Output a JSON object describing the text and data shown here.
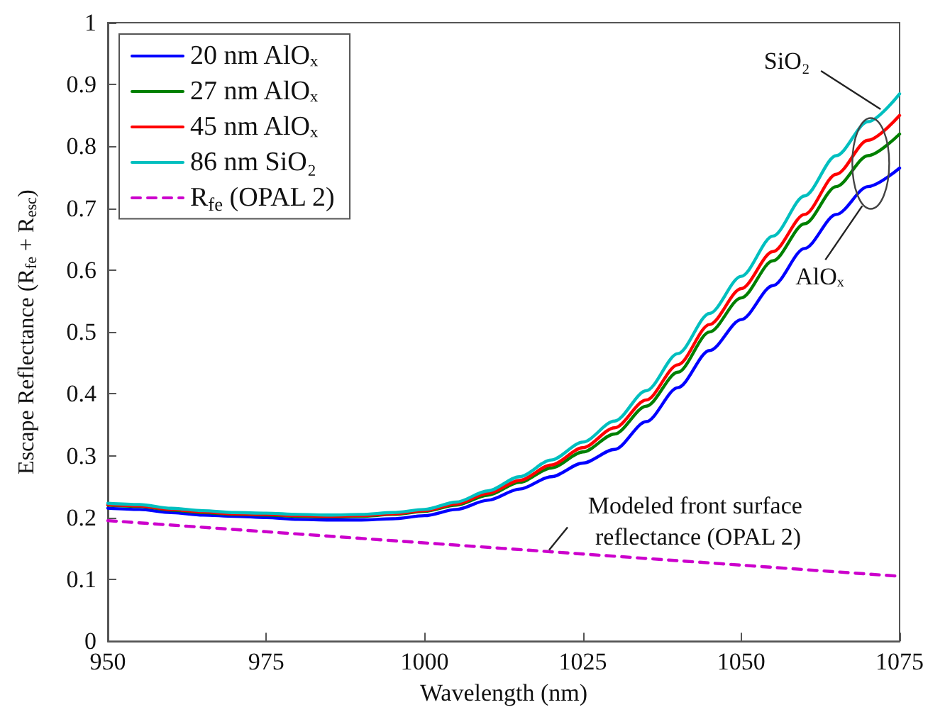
{
  "chart_data": {
    "type": "line",
    "xlabel": "Wavelength (nm)",
    "ylabel": "Escape Reflectance (R$_{fe}$ + R$_{esc}$)",
    "x": [
      950,
      955,
      960,
      965,
      970,
      975,
      980,
      985,
      990,
      995,
      1000,
      1005,
      1010,
      1015,
      1020,
      1025,
      1030,
      1035,
      1040,
      1045,
      1050,
      1055,
      1060,
      1065,
      1070,
      1075
    ],
    "series": [
      {
        "name": "20 nm AlOₓ",
        "color": "#0000ff",
        "line_style": "solid",
        "values": [
          0.215,
          0.213,
          0.208,
          0.204,
          0.202,
          0.2,
          0.197,
          0.196,
          0.196,
          0.198,
          0.203,
          0.213,
          0.228,
          0.246,
          0.266,
          0.288,
          0.31,
          0.355,
          0.41,
          0.47,
          0.52,
          0.575,
          0.635,
          0.69,
          0.735,
          0.765
        ]
      },
      {
        "name": "27 nm AlOₓ",
        "color": "#008000",
        "line_style": "solid",
        "values": [
          0.22,
          0.218,
          0.212,
          0.208,
          0.205,
          0.204,
          0.202,
          0.201,
          0.202,
          0.205,
          0.21,
          0.22,
          0.236,
          0.257,
          0.28,
          0.306,
          0.335,
          0.38,
          0.435,
          0.5,
          0.555,
          0.615,
          0.675,
          0.735,
          0.785,
          0.82
        ]
      },
      {
        "name": "45 nm AlOₓ",
        "color": "#ff0000",
        "line_style": "solid",
        "values": [
          0.221,
          0.219,
          0.213,
          0.209,
          0.206,
          0.205,
          0.203,
          0.202,
          0.203,
          0.206,
          0.211,
          0.222,
          0.239,
          0.26,
          0.285,
          0.313,
          0.345,
          0.39,
          0.447,
          0.512,
          0.57,
          0.63,
          0.69,
          0.755,
          0.81,
          0.85
        ]
      },
      {
        "name": "86 nm SiO₂",
        "color": "#00bfbf",
        "line_style": "solid",
        "values": [
          0.223,
          0.221,
          0.215,
          0.211,
          0.208,
          0.207,
          0.205,
          0.204,
          0.205,
          0.208,
          0.213,
          0.225,
          0.243,
          0.266,
          0.293,
          0.322,
          0.356,
          0.405,
          0.465,
          0.53,
          0.59,
          0.655,
          0.72,
          0.785,
          0.84,
          0.885
        ]
      },
      {
        "name": "R$_{fe}$ (OPAL 2)",
        "color": "#cc00cc",
        "line_style": "dashed",
        "x": [
          950,
          1075
        ],
        "values": [
          0.195,
          0.105
        ]
      }
    ],
    "xlim": [
      950,
      1075
    ],
    "xticks": [
      950,
      975,
      1000,
      1025,
      1050,
      1075
    ],
    "ylim": [
      0,
      1
    ],
    "yticks": [
      0,
      0.1,
      0.2,
      0.3,
      0.4,
      0.5,
      0.6,
      0.7,
      0.8,
      0.9,
      1
    ],
    "grid": false,
    "legend": "top left",
    "marker": "none",
    "annotations": [
      {
        "text": "SiO₂",
        "x": 1072,
        "y": 0.86
      },
      "AlOₓ",
      {
        "text": "Modeled front surface reflectance (OPAL 2)",
        "x": 1019,
        "y": 0.143
      }
    ]
  }
}
